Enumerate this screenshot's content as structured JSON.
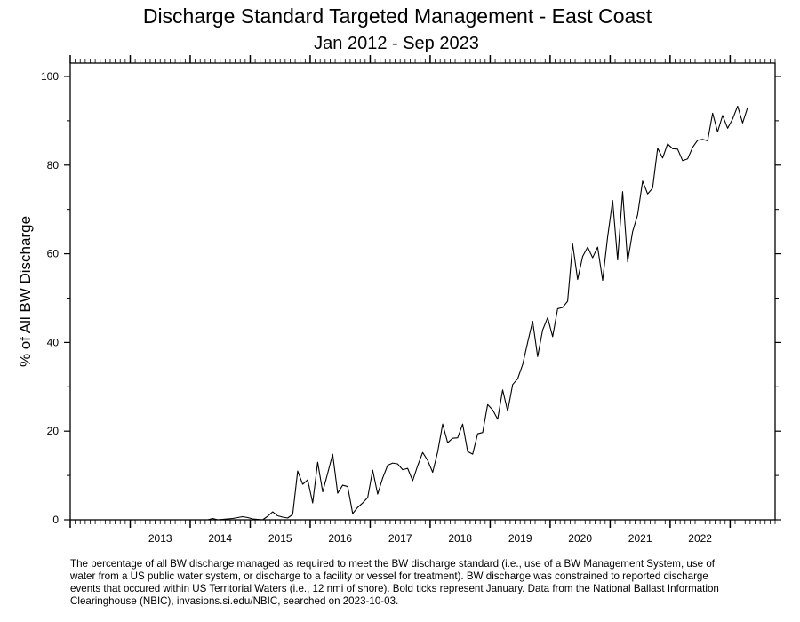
{
  "chart_data": {
    "type": "line",
    "title": "Discharge Standard Targeted Management - East Coast",
    "subtitle": "Jan 2012 - Sep 2023",
    "xlabel": "",
    "ylabel": "% of All BW Discharge",
    "x_start": "2012-01",
    "x_end": "2023-09",
    "ylim": [
      0,
      103
    ],
    "y_ticks": [
      "0",
      "20",
      "40",
      "60",
      "80",
      "100"
    ],
    "x_tick_labels": [
      "2013",
      "2014",
      "2015",
      "2016",
      "2017",
      "2018",
      "2019",
      "2020",
      "2021",
      "2022"
    ],
    "grid": false,
    "series": [
      {
        "color": "#000000",
        "values": [
          0,
          0,
          0,
          0,
          0,
          0,
          0,
          0,
          0,
          0,
          0,
          0,
          0,
          0,
          0,
          0,
          0,
          0,
          0,
          0,
          0,
          0,
          0,
          0,
          0,
          0,
          0,
          0,
          0.3,
          0,
          0.1,
          0.2,
          0.3,
          0.5,
          0.7,
          0.5,
          0.2,
          0.1,
          0,
          0.8,
          1.8,
          0.9,
          0.6,
          0.4,
          1.2,
          11.0,
          8.0,
          9.0,
          3.8,
          13.0,
          6.3,
          10.5,
          14.8,
          6.0,
          7.8,
          7.5,
          1.4,
          2.8,
          3.8,
          5.0,
          11.2,
          5.8,
          9.4,
          12.3,
          12.8,
          12.6,
          11.3,
          11.6,
          8.8,
          12.2,
          15.2,
          13.4,
          10.7,
          15.3,
          21.6,
          17.4,
          18.4,
          18.5,
          21.6,
          15.4,
          14.8,
          19.4,
          19.7,
          26.0,
          24.8,
          22.7,
          29.3,
          24.5,
          30.5,
          31.8,
          35.0,
          40.0,
          44.8,
          36.8,
          42.8,
          45.6,
          41.3,
          47.6,
          47.9,
          49.3,
          62.2,
          54.2,
          59.4,
          61.5,
          59.1,
          61.5,
          54.0,
          63.8,
          72.0,
          58.6,
          74.0,
          58.2,
          65.0,
          68.8,
          76.4,
          73.5,
          74.8,
          83.8,
          81.6,
          84.8,
          83.7,
          83.6,
          81.0,
          81.4,
          84.0,
          85.6,
          85.8,
          85.5,
          91.7,
          87.5,
          91.2,
          88.3,
          90.4,
          93.3,
          89.5,
          93.0
        ]
      }
    ]
  },
  "footnote": "The percentage of all BW discharge managed as required to meet the BW discharge standard (i.e., use of a BW Management System, use of water from a US public water system, or discharge to a facility or vessel for treatment). BW discharge was constrained to reported discharge events that occured within US Territorial Waters (i.e., 12 nmi of shore). Bold ticks represent January. Data from the National Ballast Information Clearinghouse (NBIC), invasions.si.edu/NBIC, searched on 2023-10-03."
}
